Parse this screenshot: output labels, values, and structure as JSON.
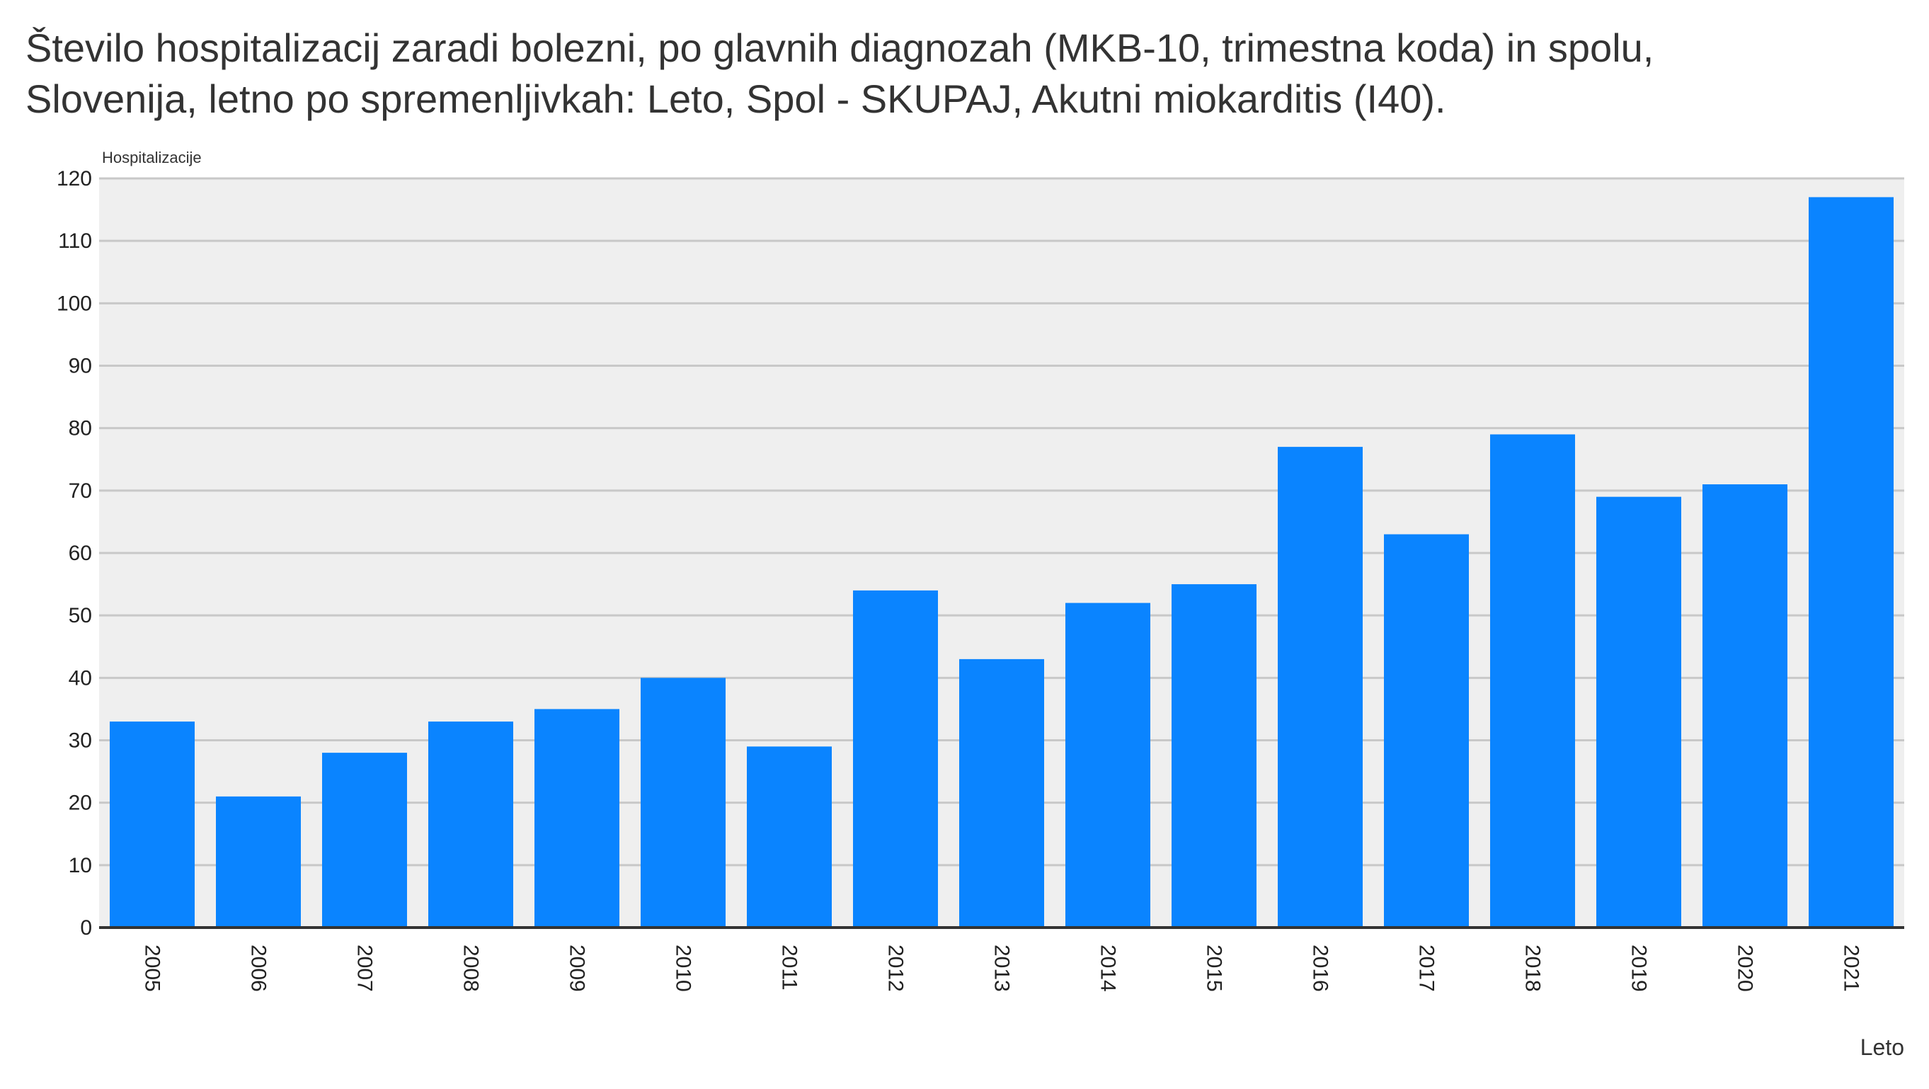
{
  "chart_data": {
    "type": "bar",
    "title_lines": [
      "Število hospitalizacij zaradi bolezni, po glavnih diagnozah (MKB-10, trimestna koda) in spolu,",
      "Slovenija, letno po spremenljivkah: Leto, Spol - SKUPAJ, Akutni miokarditis (I40)."
    ],
    "ylabel": "Hospitalizacije",
    "xlabel": "Leto",
    "ylim": [
      0,
      120
    ],
    "yticks": [
      0,
      10,
      20,
      30,
      40,
      50,
      60,
      70,
      80,
      90,
      100,
      110,
      120
    ],
    "grid": true,
    "categories": [
      "2005",
      "2006",
      "2007",
      "2008",
      "2009",
      "2010",
      "2011",
      "2012",
      "2013",
      "2014",
      "2015",
      "2016",
      "2017",
      "2018",
      "2019",
      "2020",
      "2021"
    ],
    "values": [
      33,
      21,
      28,
      33,
      35,
      40,
      29,
      54,
      43,
      52,
      55,
      77,
      63,
      79,
      69,
      71,
      117
    ],
    "bar_color": "#0a84ff",
    "plot_background": "#efefef",
    "grid_color": "#c8c8c8"
  }
}
